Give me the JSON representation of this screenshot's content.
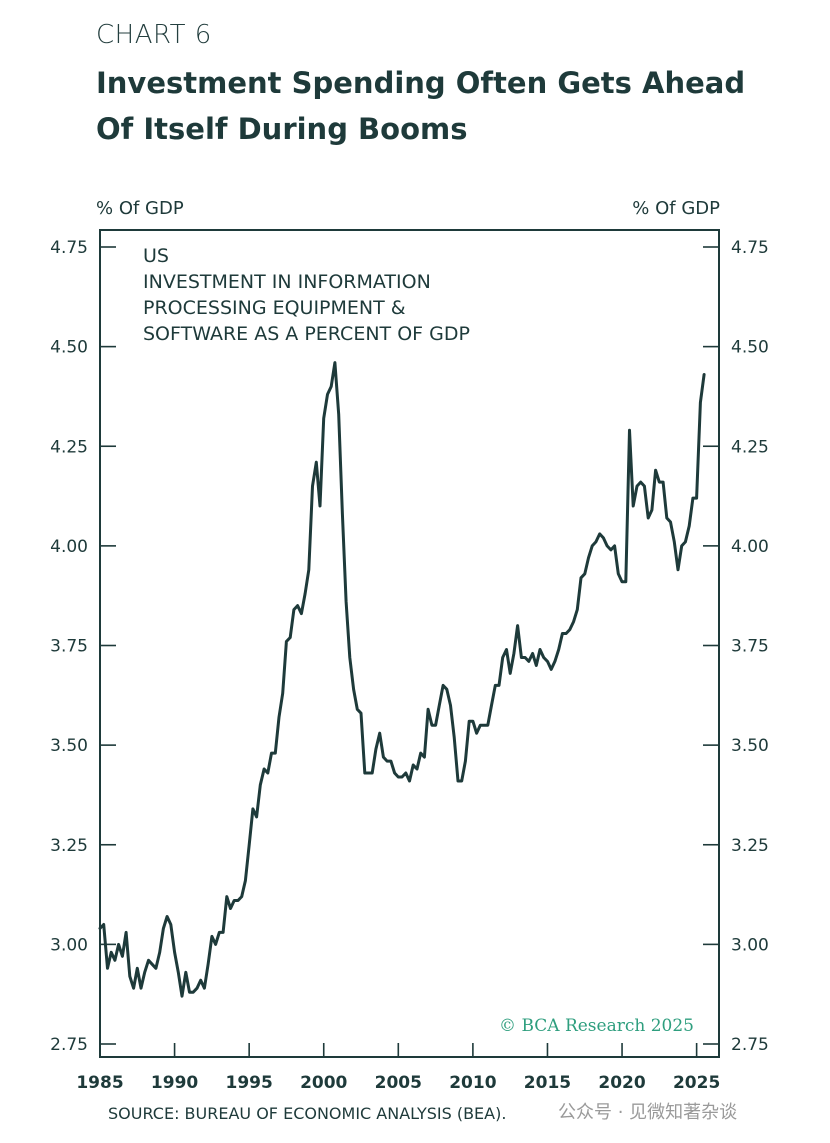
{
  "header": {
    "chart_label": "CHART 6",
    "title": "Investment Spending Often Gets Ahead Of Itself During Booms"
  },
  "axis_units": {
    "left": "% Of GDP",
    "right": "% Of GDP"
  },
  "annotation": {
    "lines": [
      "US",
      "INVESTMENT IN INFORMATION",
      "PROCESSING EQUIPMENT &",
      "SOFTWARE AS A PERCENT OF GDP"
    ]
  },
  "copyright": "© BCA Research 2025",
  "source": "SOURCE: BUREAU OF ECONOMIC ANALYSIS (BEA).",
  "watermark": "公众号 · 见微知著杂谈",
  "colors": {
    "line": "#1e3a3a",
    "text": "#1e3a3a",
    "copyright": "#2e9e7e"
  },
  "chart_data": {
    "type": "line",
    "title": "Investment Spending Often Gets Ahead Of Itself During Booms",
    "xlabel": "",
    "ylabel": "% Of GDP",
    "xlim": [
      1985,
      2026.5
    ],
    "ylim": [
      2.75,
      4.75
    ],
    "x_ticks": [
      1985,
      1990,
      1995,
      2000,
      2005,
      2010,
      2015,
      2020,
      2025
    ],
    "y_ticks": [
      2.75,
      3.0,
      3.25,
      3.5,
      3.75,
      4.0,
      4.25,
      4.5,
      4.75
    ],
    "y_tick_labels": [
      "2.75",
      "3.00",
      "3.25",
      "3.50",
      "3.75",
      "4.00",
      "4.25",
      "4.50",
      "4.75"
    ],
    "series": [
      {
        "name": "Investment in information processing equipment & software, % of GDP",
        "x": [
          1985.0,
          1985.25,
          1985.5,
          1985.75,
          1986.0,
          1986.25,
          1986.5,
          1986.75,
          1987.0,
          1987.25,
          1987.5,
          1987.75,
          1988.0,
          1988.25,
          1988.5,
          1988.75,
          1989.0,
          1989.25,
          1989.5,
          1989.75,
          1990.0,
          1990.25,
          1990.5,
          1990.75,
          1991.0,
          1991.25,
          1991.5,
          1991.75,
          1992.0,
          1992.25,
          1992.5,
          1992.75,
          1993.0,
          1993.25,
          1993.5,
          1993.75,
          1994.0,
          1994.25,
          1994.5,
          1994.75,
          1995.0,
          1995.25,
          1995.5,
          1995.75,
          1996.0,
          1996.25,
          1996.5,
          1996.75,
          1997.0,
          1997.25,
          1997.5,
          1997.75,
          1998.0,
          1998.25,
          1998.5,
          1998.75,
          1999.0,
          1999.25,
          1999.5,
          1999.75,
          2000.0,
          2000.25,
          2000.5,
          2000.75,
          2001.0,
          2001.25,
          2001.5,
          2001.75,
          2002.0,
          2002.25,
          2002.5,
          2002.75,
          2003.0,
          2003.25,
          2003.5,
          2003.75,
          2004.0,
          2004.25,
          2004.5,
          2004.75,
          2005.0,
          2005.25,
          2005.5,
          2005.75,
          2006.0,
          2006.25,
          2006.5,
          2006.75,
          2007.0,
          2007.25,
          2007.5,
          2007.75,
          2008.0,
          2008.25,
          2008.5,
          2008.75,
          2009.0,
          2009.25,
          2009.5,
          2009.75,
          2010.0,
          2010.25,
          2010.5,
          2010.75,
          2011.0,
          2011.25,
          2011.5,
          2011.75,
          2012.0,
          2012.25,
          2012.5,
          2012.75,
          2013.0,
          2013.25,
          2013.5,
          2013.75,
          2014.0,
          2014.25,
          2014.5,
          2014.75,
          2015.0,
          2015.25,
          2015.5,
          2015.75,
          2016.0,
          2016.25,
          2016.5,
          2016.75,
          2017.0,
          2017.25,
          2017.5,
          2017.75,
          2018.0,
          2018.25,
          2018.5,
          2018.75,
          2019.0,
          2019.25,
          2019.5,
          2019.75,
          2020.0,
          2020.25,
          2020.5,
          2020.75,
          2021.0,
          2021.25,
          2021.5,
          2021.75,
          2022.0,
          2022.25,
          2022.5,
          2022.75,
          2023.0,
          2023.25,
          2023.5,
          2023.75,
          2024.0,
          2024.25,
          2024.5,
          2024.75,
          2025.0,
          2025.25,
          2025.5
        ],
        "values": [
          3.04,
          3.05,
          2.94,
          2.98,
          2.96,
          3.0,
          2.97,
          3.03,
          2.92,
          2.89,
          2.94,
          2.89,
          2.93,
          2.96,
          2.95,
          2.94,
          2.98,
          3.04,
          3.07,
          3.05,
          2.98,
          2.93,
          2.87,
          2.93,
          2.88,
          2.88,
          2.89,
          2.91,
          2.89,
          2.95,
          3.02,
          3.0,
          3.03,
          3.03,
          3.12,
          3.09,
          3.11,
          3.11,
          3.12,
          3.16,
          3.25,
          3.34,
          3.32,
          3.4,
          3.44,
          3.43,
          3.48,
          3.48,
          3.57,
          3.63,
          3.76,
          3.77,
          3.84,
          3.85,
          3.83,
          3.88,
          3.94,
          4.15,
          4.21,
          4.1,
          4.32,
          4.38,
          4.4,
          4.46,
          4.33,
          4.08,
          3.86,
          3.72,
          3.64,
          3.59,
          3.58,
          3.43,
          3.43,
          3.43,
          3.49,
          3.53,
          3.47,
          3.46,
          3.46,
          3.43,
          3.42,
          3.42,
          3.43,
          3.41,
          3.45,
          3.44,
          3.48,
          3.47,
          3.59,
          3.55,
          3.55,
          3.6,
          3.65,
          3.64,
          3.6,
          3.52,
          3.41,
          3.41,
          3.46,
          3.56,
          3.56,
          3.53,
          3.55,
          3.55,
          3.55,
          3.6,
          3.65,
          3.65,
          3.72,
          3.74,
          3.68,
          3.73,
          3.8,
          3.72,
          3.72,
          3.71,
          3.73,
          3.7,
          3.74,
          3.72,
          3.71,
          3.69,
          3.71,
          3.74,
          3.78,
          3.78,
          3.79,
          3.81,
          3.84,
          3.92,
          3.93,
          3.97,
          4.0,
          4.01,
          4.03,
          4.02,
          4.0,
          3.99,
          4.0,
          3.93,
          3.91,
          3.91,
          4.29,
          4.1,
          4.15,
          4.16,
          4.15,
          4.07,
          4.09,
          4.19,
          4.16,
          4.16,
          4.07,
          4.06,
          4.01,
          3.94,
          4.0,
          4.01,
          4.05,
          4.12,
          4.12,
          4.36,
          4.43
        ]
      }
    ]
  }
}
